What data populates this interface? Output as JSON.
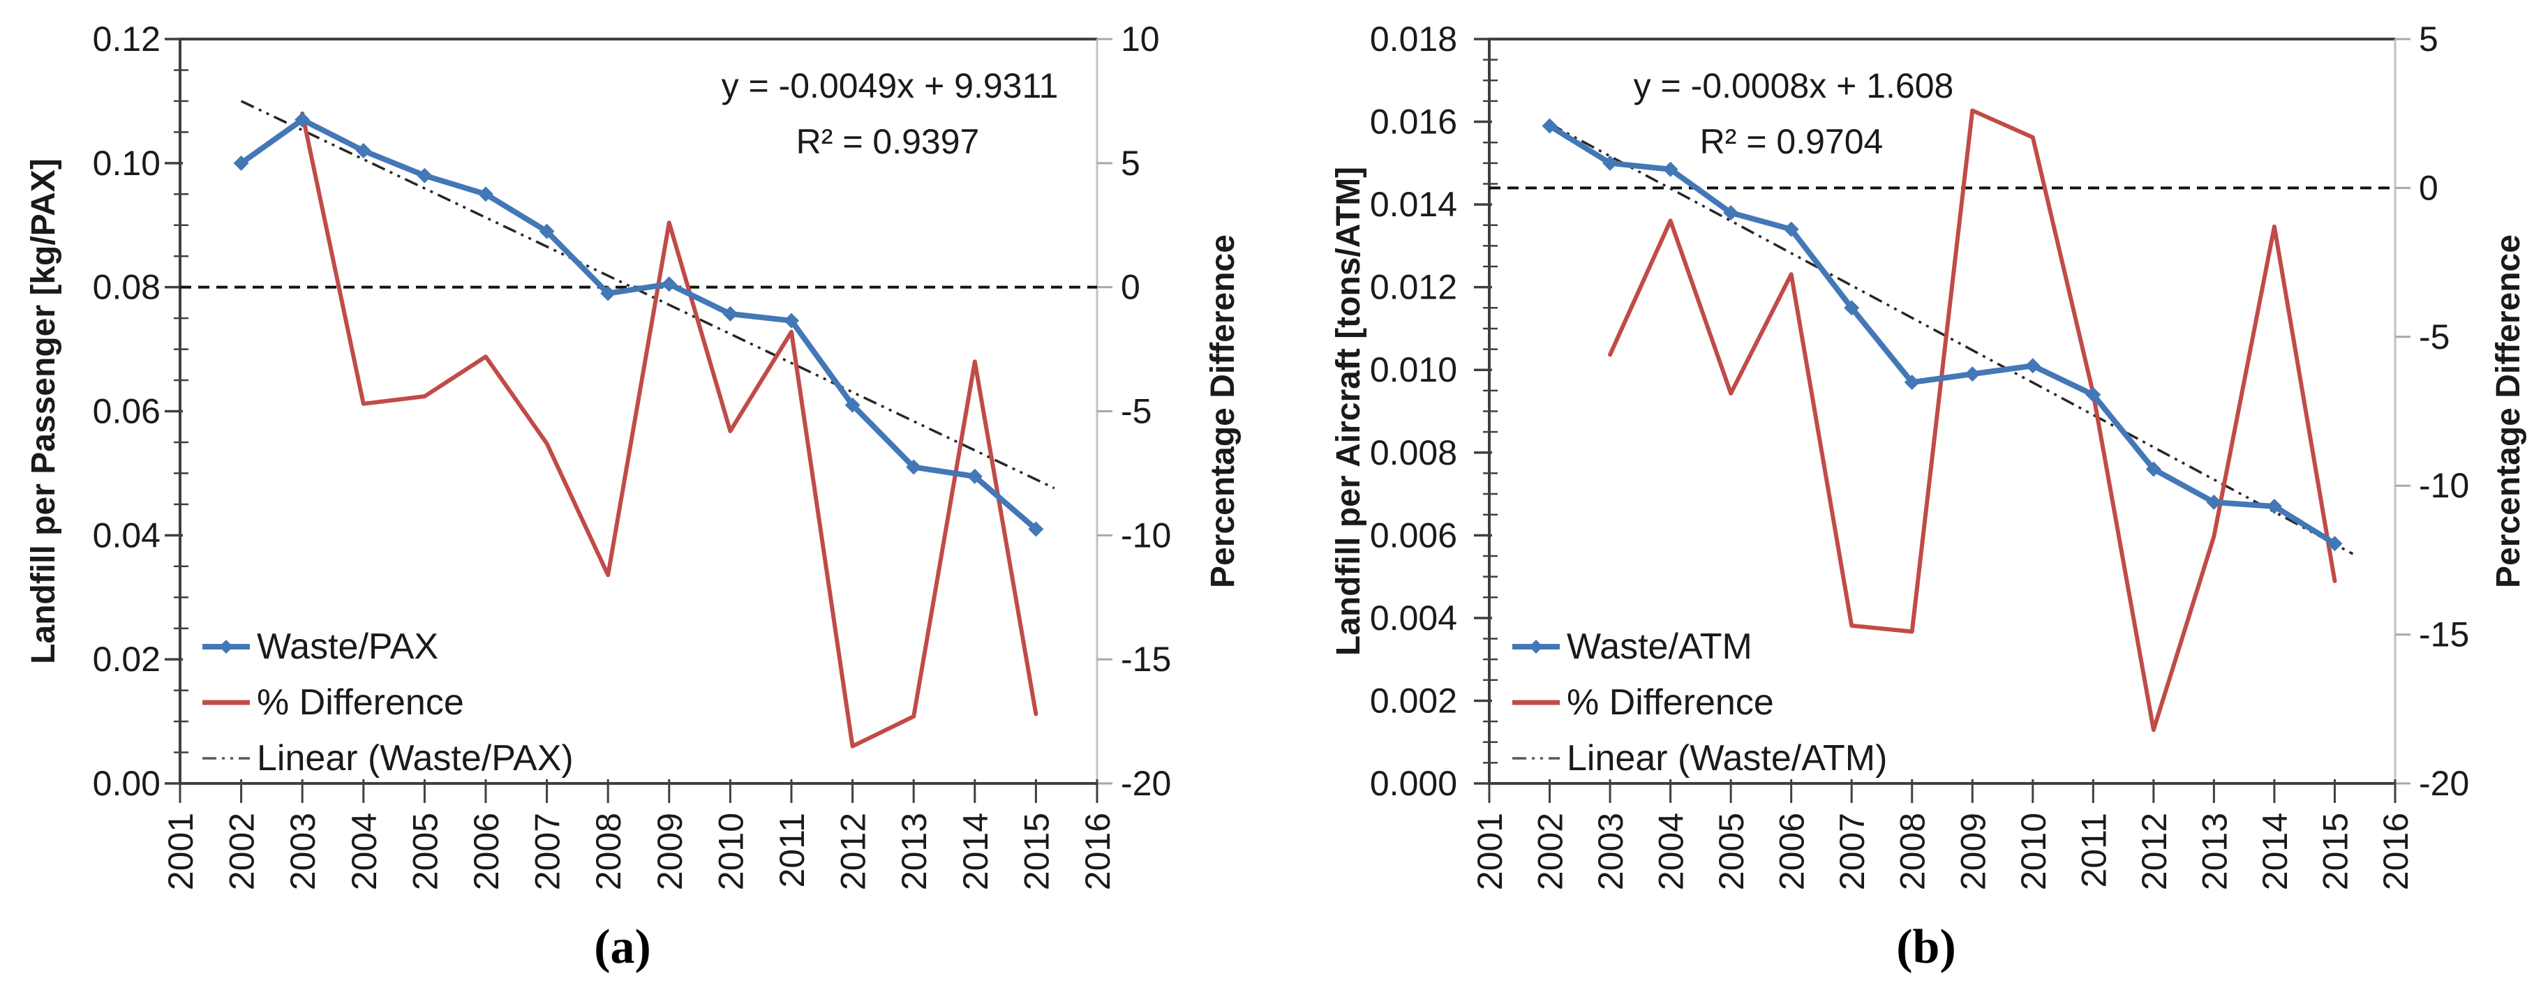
{
  "figure": {
    "background": "#ffffff",
    "description": "Two-panel line chart figure of landfill waste trends 2002-2015 with year-over-year percentage difference and linear trendlines"
  },
  "chart_data": [
    {
      "type": "line",
      "caption": "(a)",
      "annotation": {
        "equation": "y = -0.0049x + 9.9311",
        "r2": "R² = 0.9397"
      },
      "x_axis": {
        "min": 2001,
        "max": 2016,
        "tick_labels": [
          "2001",
          "2002",
          "2003",
          "2004",
          "2005",
          "2006",
          "2007",
          "2008",
          "2009",
          "2010",
          "2011",
          "2012",
          "2013",
          "2014",
          "2015",
          "2016"
        ]
      },
      "y_left": {
        "label": "Landfill per Passenger [kg/PAX]",
        "min": 0,
        "max": 0.12,
        "tick_values": [
          0,
          0.02,
          0.04,
          0.06,
          0.08,
          0.1,
          0.12
        ],
        "tick_labels": [
          "0.00",
          "0.02",
          "0.04",
          "0.06",
          "0.08",
          "0.10",
          "0.12"
        ],
        "minor_step": 0.005
      },
      "y_right": {
        "label": "Percentage Difference",
        "min": -20,
        "max": 10,
        "tick_values": [
          10,
          5,
          0,
          -5,
          -10,
          -15,
          -20
        ],
        "tick_labels": [
          "10",
          "5",
          "0",
          "-5",
          "-10",
          "-15",
          "-20"
        ],
        "zero_line": 0
      },
      "series": [
        {
          "name": "Waste/PAX",
          "kind": "data",
          "axis": "left",
          "color": "#4377b6",
          "marker": "diamond",
          "x": [
            2002,
            2003,
            2004,
            2005,
            2006,
            2007,
            2008,
            2009,
            2010,
            2011,
            2012,
            2013,
            2014,
            2015
          ],
          "values": [
            0.1,
            0.107,
            0.102,
            0.098,
            0.095,
            0.089,
            0.079,
            0.0805,
            0.0757,
            0.0746,
            0.061,
            0.051,
            0.0495,
            0.041
          ]
        },
        {
          "name": "% Difference",
          "kind": "data",
          "axis": "right",
          "color": "#c04b47",
          "marker": "none",
          "x": [
            2003,
            2004,
            2005,
            2006,
            2007,
            2008,
            2009,
            2010,
            2011,
            2012,
            2013,
            2014,
            2015
          ],
          "values": [
            7.0,
            -4.7,
            -4.4,
            -2.8,
            -6.3,
            -11.6,
            2.6,
            -5.8,
            -1.8,
            -18.5,
            -17.3,
            -3.0,
            -17.2
          ]
        },
        {
          "name": "Linear (Waste/PAX)",
          "kind": "trendline",
          "axis": "left",
          "color": "#262626",
          "x": [
            2002.0,
            2015.3
          ],
          "values": [
            0.11,
            0.0476
          ]
        }
      ],
      "legend": [
        "Waste/PAX",
        "% Difference",
        "Linear (Waste/PAX)"
      ]
    },
    {
      "type": "line",
      "caption": "(b)",
      "annotation": {
        "equation": "y = -0.0008x + 1.608",
        "r2": "R² = 0.9704"
      },
      "x_axis": {
        "min": 2001,
        "max": 2016,
        "tick_labels": [
          "2001",
          "2002",
          "2003",
          "2004",
          "2005",
          "2006",
          "2007",
          "2008",
          "2009",
          "2010",
          "2011",
          "2012",
          "2013",
          "2014",
          "2015",
          "2016"
        ]
      },
      "y_left": {
        "label": "Landfill per Aircraft [tons/ATM]",
        "min": 0,
        "max": 0.018,
        "tick_values": [
          0,
          0.002,
          0.004,
          0.006,
          0.008,
          0.01,
          0.012,
          0.014,
          0.016,
          0.018
        ],
        "tick_labels": [
          "0.000",
          "0.002",
          "0.004",
          "0.006",
          "0.008",
          "0.010",
          "0.012",
          "0.014",
          "0.016",
          "0.018"
        ],
        "minor_step": 0.0005
      },
      "y_right": {
        "label": "Percentage Difference",
        "min": -20,
        "max": 5,
        "tick_values": [
          5,
          0,
          -5,
          -10,
          -15,
          -20
        ],
        "tick_labels": [
          "5",
          "0",
          "-5",
          "-10",
          "-15",
          "-20"
        ],
        "zero_line": 0
      },
      "series": [
        {
          "name": "Waste/ATM",
          "kind": "data",
          "axis": "left",
          "color": "#4377b6",
          "marker": "diamond",
          "x": [
            2002,
            2003,
            2004,
            2005,
            2006,
            2007,
            2008,
            2009,
            2010,
            2011,
            2012,
            2013,
            2014,
            2015
          ],
          "values": [
            0.0159,
            0.015,
            0.01485,
            0.0138,
            0.0134,
            0.0115,
            0.0097,
            0.0099,
            0.0101,
            0.0094,
            0.0076,
            0.0068,
            0.0067,
            0.0058
          ]
        },
        {
          "name": "% Difference",
          "kind": "data",
          "axis": "right",
          "color": "#c04b47",
          "marker": "none",
          "x": [
            2003,
            2004,
            2005,
            2006,
            2007,
            2008,
            2009,
            2010,
            2011,
            2012,
            2013,
            2014,
            2015
          ],
          "values": [
            -5.6,
            -1.1,
            -6.9,
            -2.9,
            -14.7,
            -14.9,
            2.6,
            1.7,
            -6.9,
            -18.2,
            -11.7,
            -1.3,
            -13.2
          ]
        },
        {
          "name": "Linear (Waste/ATM)",
          "kind": "trendline",
          "axis": "left",
          "color": "#262626",
          "x": [
            2002.0,
            2015.3
          ],
          "values": [
            0.01595,
            0.00555
          ]
        }
      ],
      "legend": [
        "Waste/ATM",
        "% Difference",
        "Linear (Waste/ATM)"
      ]
    }
  ]
}
